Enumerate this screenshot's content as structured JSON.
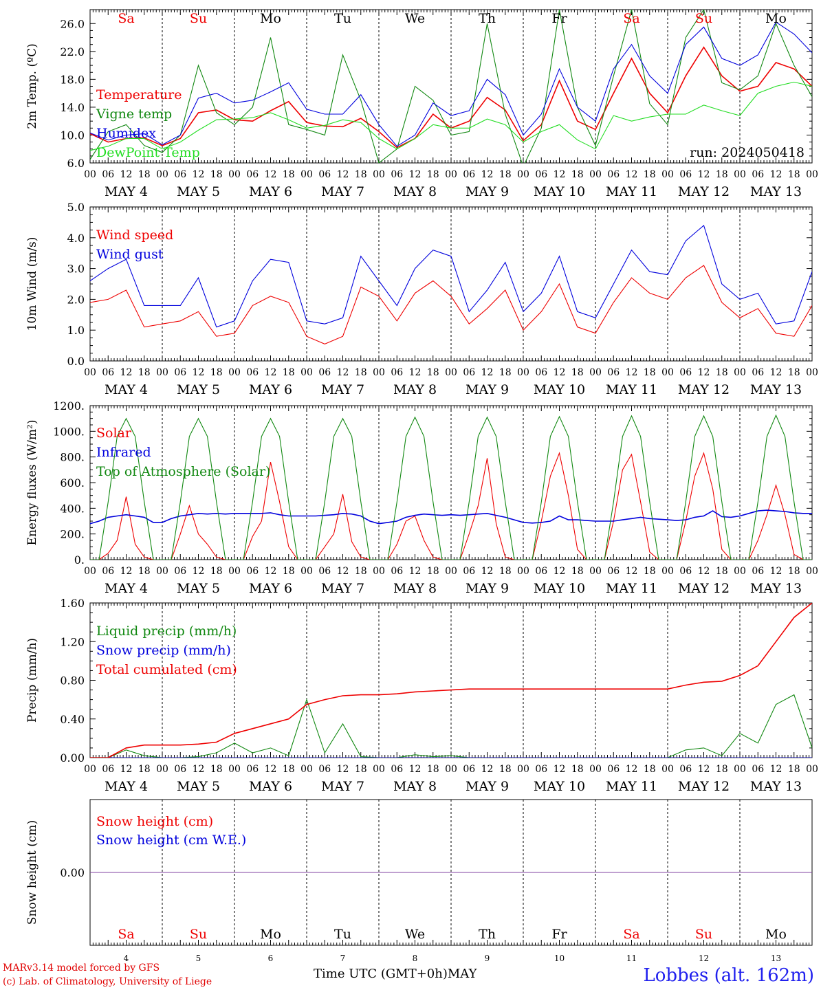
{
  "footer": {
    "model_line": "MARv3.14 model forced by GFS",
    "copyright_line": "(c) Lab. of Climatology, University of Liege",
    "station": "Lobbes (alt. 162m)",
    "x_title": "Time UTC (GMT+0h)",
    "x_month": "MAY"
  },
  "colors": {
    "red": "#ee0000",
    "green": "#118811",
    "blue": "#0000dd",
    "lightgreen": "#22dd22",
    "purple": "#8040a0",
    "weekend": "#ee0000"
  },
  "days": {
    "dates": [
      "MAY  4",
      "MAY  5",
      "MAY  6",
      "MAY  7",
      "MAY  8",
      "MAY  9",
      "MAY 10",
      "MAY 11",
      "MAY 12",
      "MAY 13"
    ],
    "weekdays": [
      "Sa",
      "Su",
      "Mo",
      "Tu",
      "We",
      "Th",
      "Fr",
      "Sa",
      "Su",
      "Mo"
    ],
    "weekend": [
      true,
      true,
      false,
      false,
      false,
      false,
      false,
      true,
      true,
      false
    ],
    "numbers": [
      "4",
      "5",
      "6",
      "7",
      "8",
      "9",
      "10",
      "11",
      "12",
      "13"
    ],
    "hour_labels": [
      "00",
      "06",
      "12",
      "18"
    ],
    "final_hour_label": "00"
  },
  "chart_data": [
    {
      "type": "line",
      "id": "temp",
      "ylabel": "2m Temp. (ºC)",
      "ylim": [
        6,
        28
      ],
      "yticks": [
        "6.0",
        "10.0",
        "14.0",
        "18.0",
        "22.0",
        "26.0"
      ],
      "run_label": "run: 2024050418",
      "x_hours": [
        0,
        6,
        12,
        18,
        24,
        30,
        36,
        42,
        48,
        54,
        60,
        66,
        72,
        78,
        84,
        90,
        96,
        102,
        108,
        114,
        120,
        126,
        132,
        138,
        144,
        150,
        156,
        162,
        168,
        174,
        180,
        186,
        192,
        198,
        204,
        210,
        216,
        222,
        228,
        234,
        240
      ],
      "series": [
        {
          "name": "Temperature",
          "color": "#ee0000",
          "values": [
            10.2,
            9.0,
            9.5,
            9.6,
            8.5,
            9.5,
            13.2,
            13.6,
            12.2,
            12.0,
            13.5,
            14.8,
            11.8,
            11.3,
            11.2,
            12.4,
            10.5,
            8.2,
            9.5,
            13.0,
            11.0,
            12.0,
            15.4,
            13.6,
            9.2,
            11.5,
            17.8,
            12.0,
            10.8,
            16.0,
            21.0,
            16.0,
            13.2,
            18.5,
            22.6,
            18.5,
            16.3,
            17.0,
            20.4,
            19.5,
            17.0
          ]
        },
        {
          "name": "Vigne temp",
          "color": "#118811",
          "values": [
            6.5,
            10.5,
            11.5,
            8.5,
            7.5,
            10.0,
            20.0,
            13.2,
            11.5,
            14.0,
            24.0,
            11.5,
            10.8,
            10.0,
            21.5,
            15.0,
            6.0,
            8.0,
            17.0,
            15.0,
            10.0,
            10.5,
            26.0,
            13.0,
            5.5,
            11.0,
            28.0,
            14.0,
            8.5,
            18.5,
            28.0,
            14.5,
            11.5,
            24.0,
            28.0,
            17.5,
            16.5,
            18.5,
            26.0,
            20.0,
            15.5
          ]
        },
        {
          "name": "Humidex",
          "color": "#0000dd",
          "values": [
            10.3,
            9.3,
            10.0,
            10.2,
            8.6,
            10.0,
            15.3,
            16.0,
            14.6,
            15.0,
            16.2,
            17.5,
            13.7,
            13.0,
            13.0,
            15.8,
            11.5,
            8.4,
            10.0,
            14.6,
            12.8,
            13.5,
            18.0,
            15.8,
            10.0,
            13.0,
            19.5,
            14.0,
            12.0,
            19.5,
            23.0,
            18.5,
            16.0,
            23.0,
            25.5,
            21.0,
            20.0,
            21.5,
            26.2,
            24.5,
            21.8
          ]
        },
        {
          "name": "DewPoint Temp",
          "color": "#22dd22",
          "values": [
            7.8,
            8.4,
            9.5,
            9.5,
            8.0,
            9.0,
            10.7,
            12.2,
            12.3,
            12.5,
            13.2,
            12.2,
            11.0,
            11.4,
            12.2,
            11.8,
            9.5,
            8.0,
            9.5,
            11.5,
            11.0,
            11.0,
            12.3,
            11.5,
            9.0,
            10.5,
            11.5,
            9.3,
            8.0,
            12.8,
            12.0,
            12.6,
            13.0,
            13.0,
            14.3,
            13.5,
            12.8,
            16.0,
            17.0,
            17.6,
            17.0
          ]
        }
      ]
    },
    {
      "type": "line",
      "id": "wind",
      "ylabel": "10m Wind (m/s)",
      "ylim": [
        0,
        5
      ],
      "yticks": [
        "0.0",
        "1.0",
        "2.0",
        "3.0",
        "4.0",
        "5.0"
      ],
      "x_hours": [
        0,
        6,
        12,
        18,
        24,
        30,
        36,
        42,
        48,
        54,
        60,
        66,
        72,
        78,
        84,
        90,
        96,
        102,
        108,
        114,
        120,
        126,
        132,
        138,
        144,
        150,
        156,
        162,
        168,
        174,
        180,
        186,
        192,
        198,
        204,
        210,
        216,
        222,
        228,
        234,
        240
      ],
      "series": [
        {
          "name": "Wind speed",
          "color": "#ee0000",
          "values": [
            1.9,
            2.0,
            2.3,
            1.1,
            1.2,
            1.3,
            1.6,
            0.8,
            0.9,
            1.8,
            2.1,
            1.9,
            0.8,
            0.55,
            0.8,
            2.4,
            2.1,
            1.3,
            2.2,
            2.6,
            2.1,
            1.2,
            1.7,
            2.3,
            1.0,
            1.6,
            2.5,
            1.1,
            0.9,
            1.9,
            2.7,
            2.2,
            2.0,
            2.7,
            3.1,
            1.9,
            1.4,
            1.7,
            0.9,
            0.8,
            1.8
          ]
        },
        {
          "name": "Wind gust",
          "color": "#0000dd",
          "values": [
            2.6,
            3.0,
            3.3,
            1.8,
            1.8,
            1.8,
            2.7,
            1.1,
            1.3,
            2.6,
            3.3,
            3.2,
            1.3,
            1.2,
            1.4,
            3.4,
            2.6,
            1.8,
            3.0,
            3.6,
            3.4,
            1.6,
            2.3,
            3.2,
            1.6,
            2.2,
            3.4,
            1.6,
            1.4,
            2.5,
            3.6,
            2.9,
            2.8,
            3.9,
            4.4,
            2.5,
            2.0,
            2.2,
            1.2,
            1.3,
            2.9
          ]
        }
      ]
    },
    {
      "type": "line",
      "id": "energy",
      "ylabel": "Energy fluxes (W/m²)",
      "ylim": [
        0,
        1200
      ],
      "yticks": [
        "0.",
        "200.",
        "400.",
        "600.",
        "800.",
        "1000.",
        "1200."
      ],
      "x_hours": [
        0,
        3,
        6,
        9,
        12,
        15,
        18,
        21,
        24,
        27,
        30,
        33,
        36,
        39,
        42,
        45,
        48,
        51,
        54,
        57,
        60,
        63,
        66,
        69,
        72,
        75,
        78,
        81,
        84,
        87,
        90,
        93,
        96,
        99,
        102,
        105,
        108,
        111,
        114,
        117,
        120,
        123,
        126,
        129,
        132,
        135,
        138,
        141,
        144,
        147,
        150,
        153,
        156,
        159,
        162,
        165,
        168,
        171,
        174,
        177,
        180,
        183,
        186,
        189,
        192,
        195,
        198,
        201,
        204,
        207,
        210,
        213,
        216,
        219,
        222,
        225,
        228,
        231,
        234,
        237,
        240
      ],
      "series": [
        {
          "name": "Solar",
          "color": "#ee0000",
          "values": [
            0,
            0,
            50,
            150,
            490,
            120,
            20,
            0,
            0,
            0,
            200,
            420,
            200,
            120,
            20,
            0,
            0,
            0,
            180,
            300,
            760,
            450,
            100,
            0,
            0,
            0,
            100,
            200,
            510,
            140,
            20,
            0,
            0,
            0,
            120,
            300,
            340,
            150,
            20,
            0,
            0,
            0,
            200,
            420,
            790,
            280,
            20,
            0,
            0,
            0,
            300,
            650,
            830,
            500,
            80,
            0,
            0,
            0,
            300,
            700,
            820,
            450,
            60,
            0,
            0,
            0,
            300,
            650,
            830,
            550,
            80,
            0,
            0,
            0,
            150,
            350,
            580,
            350,
            40,
            0,
            0
          ]
        },
        {
          "name": "Infrared",
          "color": "#0000dd",
          "values": [
            280,
            300,
            330,
            340,
            350,
            340,
            330,
            290,
            290,
            320,
            340,
            350,
            360,
            355,
            360,
            355,
            360,
            360,
            360,
            360,
            365,
            350,
            340,
            340,
            340,
            340,
            345,
            350,
            360,
            355,
            340,
            300,
            280,
            290,
            300,
            330,
            345,
            355,
            350,
            345,
            350,
            345,
            350,
            355,
            360,
            345,
            330,
            310,
            290,
            285,
            290,
            300,
            340,
            310,
            310,
            305,
            300,
            300,
            300,
            310,
            320,
            330,
            320,
            315,
            310,
            305,
            310,
            330,
            340,
            380,
            335,
            330,
            340,
            360,
            380,
            385,
            380,
            375,
            365,
            360,
            360
          ]
        },
        {
          "name": "Top of Atmosphere (Solar)",
          "color": "#118811",
          "values": [
            0,
            0,
            450,
            960,
            1100,
            960,
            450,
            0,
            0,
            0,
            450,
            960,
            1100,
            960,
            450,
            0,
            0,
            0,
            450,
            960,
            1100,
            960,
            450,
            0,
            0,
            0,
            450,
            960,
            1100,
            960,
            450,
            0,
            0,
            0,
            450,
            960,
            1110,
            960,
            450,
            0,
            0,
            0,
            450,
            960,
            1110,
            960,
            450,
            0,
            0,
            0,
            450,
            960,
            1115,
            960,
            450,
            0,
            0,
            0,
            450,
            960,
            1120,
            960,
            450,
            0,
            0,
            0,
            450,
            960,
            1120,
            960,
            450,
            0,
            0,
            0,
            450,
            960,
            1125,
            960,
            450,
            0,
            0
          ]
        }
      ]
    },
    {
      "type": "line",
      "id": "precip",
      "ylabel": "Precip (mm/h)",
      "ylim": [
        0,
        1.6
      ],
      "yticks": [
        "0.00",
        "0.40",
        "0.80",
        "1.20",
        "1.60"
      ],
      "x_hours": [
        0,
        6,
        12,
        18,
        24,
        30,
        36,
        42,
        48,
        54,
        60,
        66,
        72,
        78,
        84,
        90,
        96,
        102,
        108,
        114,
        120,
        126,
        132,
        138,
        144,
        150,
        156,
        162,
        168,
        174,
        180,
        186,
        192,
        198,
        204,
        210,
        216,
        222,
        228,
        234,
        240
      ],
      "series": [
        {
          "name": "Liquid precip (mm/h)",
          "color": "#118811",
          "values": [
            0.0,
            0.0,
            0.08,
            0.02,
            0.0,
            0.0,
            0.01,
            0.05,
            0.15,
            0.05,
            0.1,
            0.02,
            0.6,
            0.05,
            0.35,
            0.01,
            0.0,
            0.0,
            0.03,
            0.01,
            0.02,
            0.0,
            0.0,
            0.0,
            0.0,
            0.0,
            0.0,
            0.0,
            0.0,
            0.0,
            0.0,
            0.0,
            0.0,
            0.08,
            0.1,
            0.02,
            0.25,
            0.15,
            0.55,
            0.65,
            0.1
          ]
        },
        {
          "name": "Snow precip (mm/h)",
          "color": "#0000dd",
          "values": [
            0,
            0,
            0,
            0,
            0,
            0,
            0,
            0,
            0,
            0,
            0,
            0,
            0,
            0,
            0,
            0,
            0,
            0,
            0,
            0,
            0,
            0,
            0,
            0,
            0,
            0,
            0,
            0,
            0,
            0,
            0,
            0,
            0,
            0,
            0,
            0,
            0,
            0,
            0,
            0,
            0
          ]
        },
        {
          "name": "Total cumulated (cm)",
          "color": "#ee0000",
          "values": [
            0.0,
            0.0,
            0.1,
            0.13,
            0.13,
            0.13,
            0.14,
            0.16,
            0.25,
            0.3,
            0.35,
            0.4,
            0.55,
            0.6,
            0.64,
            0.65,
            0.65,
            0.66,
            0.68,
            0.69,
            0.7,
            0.71,
            0.71,
            0.71,
            0.71,
            0.71,
            0.71,
            0.71,
            0.71,
            0.71,
            0.71,
            0.71,
            0.71,
            0.75,
            0.78,
            0.79,
            0.85,
            0.95,
            1.2,
            1.45,
            1.6
          ]
        }
      ]
    },
    {
      "type": "line",
      "id": "snow",
      "ylabel": "Snow height (cm)",
      "ylim": [
        -1,
        1
      ],
      "yticks": [
        "0.00"
      ],
      "x_hours": [
        0,
        240
      ],
      "series": [
        {
          "name": "Snow height (cm)",
          "color": "#ee0000",
          "values": [
            0,
            0
          ]
        },
        {
          "name": "Snow height (cm W.E.)",
          "color": "#0000dd",
          "values": [
            0,
            0
          ]
        }
      ]
    }
  ]
}
